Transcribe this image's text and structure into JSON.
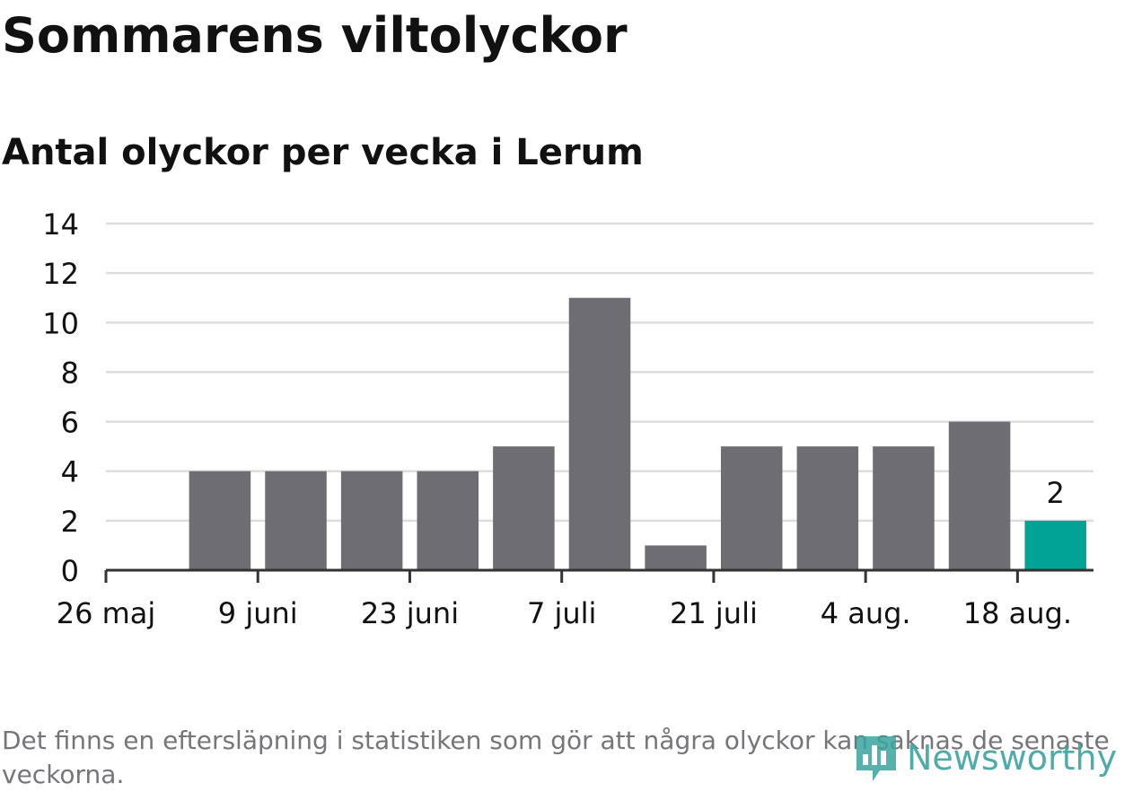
{
  "chart_data": {
    "type": "bar",
    "title": "Sommarens viltolyckor",
    "subtitle": "Antal olyckor per vecka i Lerum",
    "xlabel": "",
    "ylabel": "",
    "x_tick_labels": [
      "26 maj",
      "9 juni",
      "23 juni",
      "7 juli",
      "21 juli",
      "4 aug.",
      "18 aug."
    ],
    "y_ticks": [
      0,
      2,
      4,
      6,
      8,
      10,
      12,
      14
    ],
    "ylim": [
      0,
      14
    ],
    "grid": true,
    "legend": "none",
    "series": [
      {
        "values": [
          4,
          4,
          4,
          4,
          5,
          11,
          1,
          5,
          5,
          5,
          6,
          2
        ]
      }
    ],
    "highlight": {
      "index": 11,
      "label": "2"
    },
    "colors": {
      "bar": "#6e6d73",
      "highlight": "#00a396",
      "grid": "#dddddd",
      "axis": "#333333"
    }
  },
  "footnote": "Det finns en eftersläpning i statistiken som gör att några olyckor kan saknas de senaste veckorna.",
  "logo": {
    "text": "Newsworthy",
    "icon": "newsworthy-logo-icon",
    "color": "#3aa4a0"
  }
}
